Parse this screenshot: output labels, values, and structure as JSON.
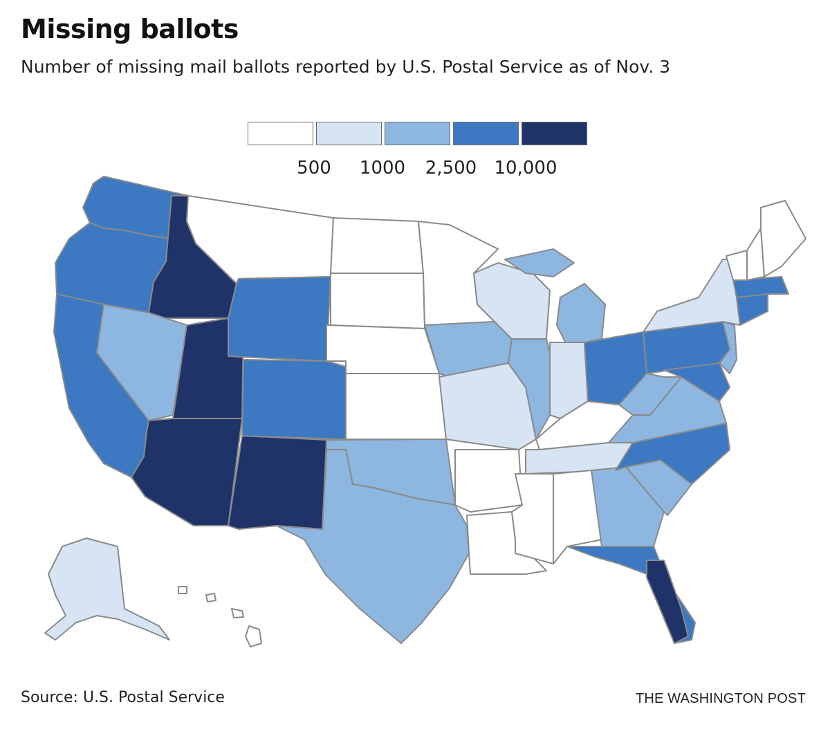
{
  "header": {
    "title": "Missing ballots",
    "subtitle": "Number of missing mail ballots reported by U.S. Postal Service as of Nov. 3"
  },
  "legend": {
    "colors": [
      "#ffffff",
      "#d6e4f3",
      "#8db6e0",
      "#3d78c2",
      "#1f3369"
    ],
    "ticks": [
      "500",
      "1000",
      "2,500",
      "10,000"
    ]
  },
  "colors": {
    "border": "#8a8a8a",
    "text": "#111111"
  },
  "footer": {
    "source": "Source: U.S. Postal Service",
    "credit": "THE WASHINGTON POST"
  }
}
